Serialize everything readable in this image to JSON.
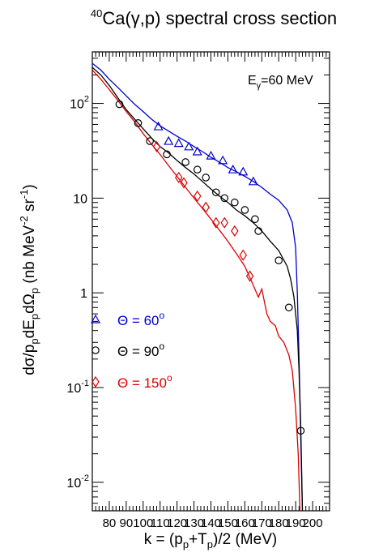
{
  "chart_data": {
    "type": "scatter",
    "title_sup": "40",
    "title_main": "Ca(γ,p) spectral cross section",
    "xlabel": {
      "pre": "k = (p",
      "s1": "p",
      "mid": "+T",
      "s2": "p",
      "post": ")/2 (MeV)"
    },
    "ylabel": {
      "t1": "dσ/p",
      "s1": "p",
      "t2": "dE",
      "s2": "p",
      "t3": "dΩ",
      "s3": "p",
      "t4": " (nb MeV",
      "e1": "-2",
      "t5": " sr",
      "e2": "-1",
      "t6": ")"
    },
    "annotation": {
      "pre": "E",
      "sub": "γ",
      "post": "=60 MeV"
    },
    "x_range": [
      70,
      210
    ],
    "y_range": [
      0.005,
      350
    ],
    "y_scale": "log",
    "x_ticks": [
      "80",
      "90",
      "100",
      "110",
      "120",
      "130",
      "140",
      "150",
      "160",
      "170",
      "180",
      "190",
      "200"
    ],
    "y_tick_labels": [
      {
        "value": 100,
        "base": "10",
        "exp": "2"
      },
      {
        "value": 10,
        "base": "10",
        "exp": ""
      },
      {
        "value": 1,
        "base": "1",
        "exp": ""
      },
      {
        "value": 0.1,
        "base": "10",
        "exp": "-1"
      },
      {
        "value": 0.01,
        "base": "10",
        "exp": "-2"
      }
    ],
    "legend": [
      {
        "theta": "Θ = 60",
        "sup": "o",
        "color": "#0000cc",
        "marker": "triangle"
      },
      {
        "theta": "Θ = 90",
        "sup": "o",
        "color": "#000000",
        "marker": "circle"
      },
      {
        "theta": "Θ = 150",
        "sup": "o",
        "color": "#dd0000",
        "marker": "diamond"
      }
    ],
    "series": [
      {
        "marker": "triangle",
        "color": "#0000cc",
        "points": [
          {
            "x": 109,
            "y": 57
          },
          {
            "x": 115,
            "y": 40
          },
          {
            "x": 121,
            "y": 38
          },
          {
            "x": 127,
            "y": 35
          },
          {
            "x": 132,
            "y": 31
          },
          {
            "x": 140,
            "y": 28
          },
          {
            "x": 147,
            "y": 25
          },
          {
            "x": 153,
            "y": 20
          },
          {
            "x": 159,
            "y": 19
          },
          {
            "x": 165,
            "y": 15
          }
        ],
        "curve": [
          {
            "x": 70,
            "y": 265
          },
          {
            "x": 75,
            "y": 225
          },
          {
            "x": 80,
            "y": 180
          },
          {
            "x": 85,
            "y": 148
          },
          {
            "x": 90,
            "y": 120
          },
          {
            "x": 95,
            "y": 98
          },
          {
            "x": 100,
            "y": 82
          },
          {
            "x": 105,
            "y": 68
          },
          {
            "x": 110,
            "y": 58
          },
          {
            "x": 115,
            "y": 51
          },
          {
            "x": 120,
            "y": 45
          },
          {
            "x": 125,
            "y": 40
          },
          {
            "x": 130,
            "y": 35
          },
          {
            "x": 135,
            "y": 31
          },
          {
            "x": 140,
            "y": 27
          },
          {
            "x": 145,
            "y": 24
          },
          {
            "x": 150,
            "y": 21
          },
          {
            "x": 155,
            "y": 19
          },
          {
            "x": 160,
            "y": 17
          },
          {
            "x": 165,
            "y": 15
          },
          {
            "x": 170,
            "y": 13
          },
          {
            "x": 175,
            "y": 11
          },
          {
            "x": 180,
            "y": 9.5
          },
          {
            "x": 185,
            "y": 7.5
          },
          {
            "x": 188,
            "y": 5.5
          },
          {
            "x": 190,
            "y": 3
          },
          {
            "x": 191,
            "y": 1
          },
          {
            "x": 192,
            "y": 0.2
          },
          {
            "x": 193,
            "y": 0.03
          },
          {
            "x": 194,
            "y": 0.005
          }
        ]
      },
      {
        "marker": "circle",
        "color": "#000000",
        "points": [
          {
            "x": 86,
            "y": 98
          },
          {
            "x": 97,
            "y": 62
          },
          {
            "x": 104,
            "y": 40
          },
          {
            "x": 114,
            "y": 29
          },
          {
            "x": 125,
            "y": 24
          },
          {
            "x": 132,
            "y": 20
          },
          {
            "x": 137,
            "y": 16.5
          },
          {
            "x": 143,
            "y": 11.5
          },
          {
            "x": 148,
            "y": 10
          },
          {
            "x": 154,
            "y": 9
          },
          {
            "x": 160,
            "y": 7.5
          },
          {
            "x": 166,
            "y": 6
          },
          {
            "x": 168,
            "y": 4.5
          },
          {
            "x": 180,
            "y": 2.2
          },
          {
            "x": 186,
            "y": 0.7
          },
          {
            "x": 193,
            "y": 0.035
          }
        ],
        "curve": [
          {
            "x": 70,
            "y": 240
          },
          {
            "x": 75,
            "y": 200
          },
          {
            "x": 80,
            "y": 155
          },
          {
            "x": 85,
            "y": 115
          },
          {
            "x": 90,
            "y": 86
          },
          {
            "x": 95,
            "y": 68
          },
          {
            "x": 100,
            "y": 54
          },
          {
            "x": 105,
            "y": 43
          },
          {
            "x": 110,
            "y": 35
          },
          {
            "x": 115,
            "y": 30
          },
          {
            "x": 120,
            "y": 25
          },
          {
            "x": 125,
            "y": 21
          },
          {
            "x": 130,
            "y": 18
          },
          {
            "x": 135,
            "y": 15
          },
          {
            "x": 140,
            "y": 12.5
          },
          {
            "x": 145,
            "y": 10.5
          },
          {
            "x": 150,
            "y": 9
          },
          {
            "x": 155,
            "y": 7.5
          },
          {
            "x": 160,
            "y": 6.5
          },
          {
            "x": 165,
            "y": 5.5
          },
          {
            "x": 170,
            "y": 4.5
          },
          {
            "x": 175,
            "y": 3.5
          },
          {
            "x": 180,
            "y": 2.8
          },
          {
            "x": 185,
            "y": 1.9
          },
          {
            "x": 187,
            "y": 1.4
          },
          {
            "x": 189,
            "y": 0.9
          },
          {
            "x": 191,
            "y": 0.4
          },
          {
            "x": 192,
            "y": 0.15
          },
          {
            "x": 193,
            "y": 0.04
          },
          {
            "x": 194,
            "y": 0.005
          }
        ]
      },
      {
        "marker": "diamond",
        "color": "#dd0000",
        "points": [
          {
            "x": 108,
            "y": 35
          },
          {
            "x": 121,
            "y": 16.5
          },
          {
            "x": 124,
            "y": 14.5
          },
          {
            "x": 132,
            "y": 10.5
          },
          {
            "x": 137,
            "y": 8
          },
          {
            "x": 143,
            "y": 5.5
          },
          {
            "x": 148,
            "y": 5.5
          },
          {
            "x": 154,
            "y": 4.5
          },
          {
            "x": 159,
            "y": 2.5
          },
          {
            "x": 163,
            "y": 1.5
          }
        ],
        "curve": [
          {
            "x": 70,
            "y": 225
          },
          {
            "x": 75,
            "y": 180
          },
          {
            "x": 80,
            "y": 140
          },
          {
            "x": 85,
            "y": 108
          },
          {
            "x": 90,
            "y": 82
          },
          {
            "x": 95,
            "y": 64
          },
          {
            "x": 100,
            "y": 48
          },
          {
            "x": 105,
            "y": 37
          },
          {
            "x": 110,
            "y": 29
          },
          {
            "x": 115,
            "y": 22
          },
          {
            "x": 120,
            "y": 17
          },
          {
            "x": 125,
            "y": 13
          },
          {
            "x": 130,
            "y": 10
          },
          {
            "x": 135,
            "y": 7.8
          },
          {
            "x": 140,
            "y": 6
          },
          {
            "x": 145,
            "y": 4.6
          },
          {
            "x": 150,
            "y": 3.5
          },
          {
            "x": 155,
            "y": 2.6
          },
          {
            "x": 160,
            "y": 1.9
          },
          {
            "x": 165,
            "y": 1.2
          },
          {
            "x": 168,
            "y": 0.9
          },
          {
            "x": 170,
            "y": 1.1
          },
          {
            "x": 173,
            "y": 0.6
          },
          {
            "x": 175,
            "y": 0.5
          },
          {
            "x": 178,
            "y": 0.45
          },
          {
            "x": 180,
            "y": 0.35
          },
          {
            "x": 183,
            "y": 0.3
          },
          {
            "x": 186,
            "y": 0.22
          },
          {
            "x": 188,
            "y": 0.15
          },
          {
            "x": 190,
            "y": 0.06
          },
          {
            "x": 191.5,
            "y": 0.02
          },
          {
            "x": 192.5,
            "y": 0.005
          }
        ]
      }
    ]
  }
}
